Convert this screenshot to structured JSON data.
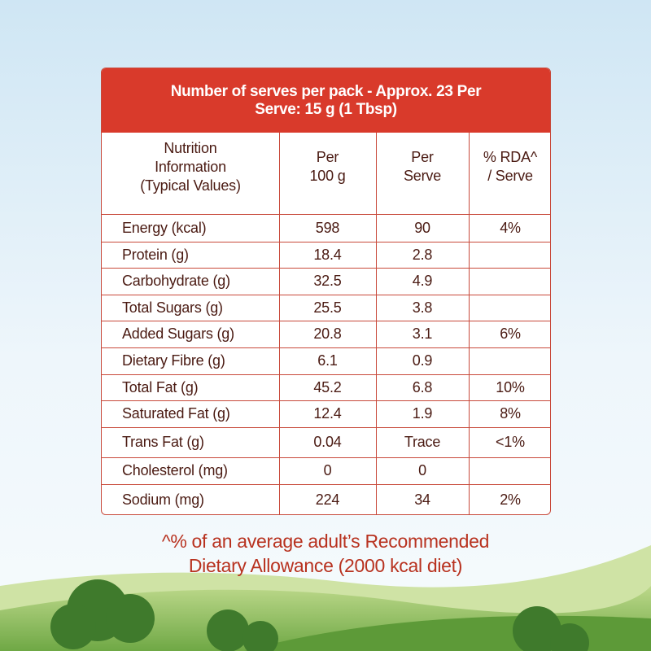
{
  "header": {
    "lines": [
      "Number of serves per pack - Approx. 23  Per",
      "Serve: 15 g (1 Tbsp)"
    ]
  },
  "table": {
    "columns": [
      [
        "Nutrition",
        "Information",
        "(Typical Values)"
      ],
      [
        "Per",
        "100 g"
      ],
      [
        "Per",
        "Serve"
      ],
      [
        "% RDA^",
        "/ Serve"
      ]
    ],
    "rows": [
      [
        "Energy (kcal)",
        598,
        90,
        "4%"
      ],
      [
        "Protein (g)",
        18.4,
        2.8,
        null
      ],
      [
        "Carbohydrate (g)",
        32.5,
        4.9,
        null
      ],
      [
        "Total Sugars (g)",
        25.5,
        3.8,
        null
      ],
      [
        "Added Sugars (g)",
        20.8,
        3.1,
        "6%"
      ],
      [
        "Dietary Fibre (g)",
        6.1,
        0.9,
        null
      ],
      [
        "Total Fat (g)",
        45.2,
        6.8,
        "10%"
      ],
      [
        "Saturated Fat (g)",
        12.4,
        1.9,
        "8%"
      ],
      [
        "Trans Fat (g)",
        0.04,
        "Trace",
        "<1%"
      ],
      [
        "Cholesterol (mg)",
        0,
        0,
        null
      ],
      [
        "Sodium (mg)",
        224,
        34,
        "2%"
      ]
    ]
  },
  "footnote": {
    "lines": [
      "^% of an average adult’s Recommended",
      "Dietary Allowance (2000 kcal diet)"
    ]
  }
}
